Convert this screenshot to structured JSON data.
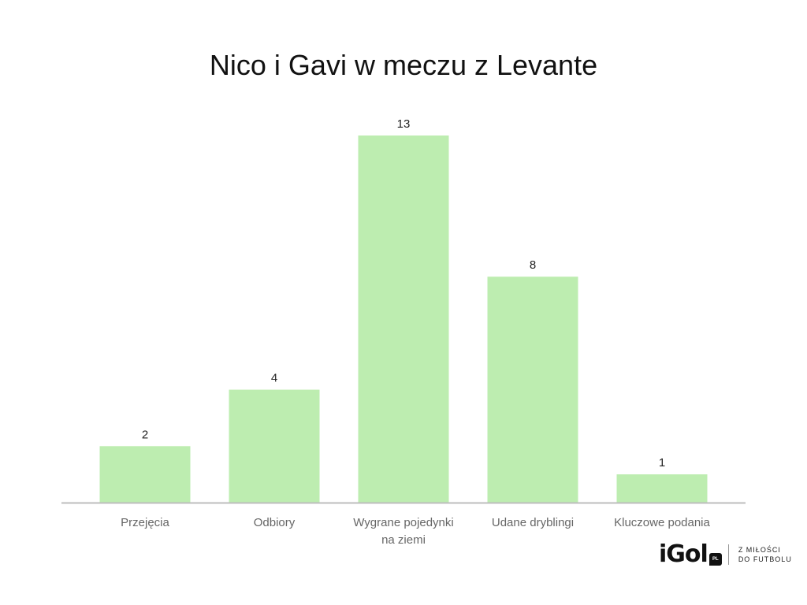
{
  "chart_data": {
    "type": "bar",
    "title": "Nico i Gavi w meczu z Levante",
    "categories": [
      "Przejęcia",
      "Odbiory",
      "Wygrane pojedynki na ziemi",
      "Udane dryblingi",
      "Kluczowe podania"
    ],
    "category_lines": [
      [
        "Przejęcia"
      ],
      [
        "Odbiory"
      ],
      [
        "Wygrane pojedynki",
        "na ziemi"
      ],
      [
        "Udane dryblingi"
      ],
      [
        "Kluczowe podania"
      ]
    ],
    "values": [
      2,
      4,
      13,
      8,
      1
    ],
    "ylim": [
      0,
      13
    ],
    "grid": false,
    "legend": "none",
    "bar_color": "#bdedb0",
    "axis_color": "#bdbdbd"
  },
  "logo": {
    "text": "iGol",
    "badge": "PL",
    "tagline_1": "Z MIŁOŚCI",
    "tagline_2": "DO FUTBOLU"
  }
}
